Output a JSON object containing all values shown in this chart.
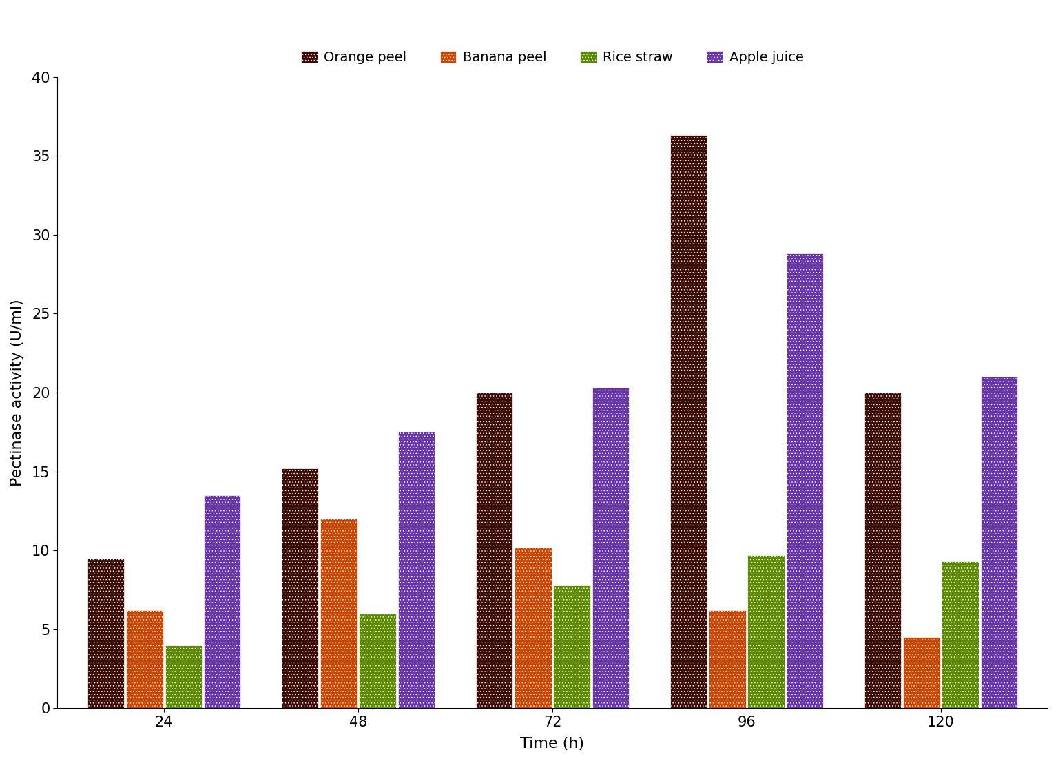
{
  "categories": [
    "24",
    "48",
    "72",
    "96",
    "120"
  ],
  "series": {
    "Orange peel": [
      9.5,
      15.2,
      20.0,
      36.3,
      20.0
    ],
    "Banana peel": [
      6.2,
      12.0,
      10.2,
      6.2,
      4.5
    ],
    "Rice straw": [
      4.0,
      6.0,
      7.8,
      9.7,
      9.3
    ],
    "Apple juice": [
      13.5,
      17.5,
      20.3,
      28.8,
      21.0
    ]
  },
  "colors": {
    "Orange peel": "#3B0A02",
    "Banana peel": "#CC4400",
    "Rice straw": "#5B8A00",
    "Apple juice": "#6633AA"
  },
  "xlabel": "Time (h)",
  "ylabel": "Pectinase activity (U/ml)",
  "ylim": [
    0,
    40
  ],
  "yticks": [
    0,
    5,
    10,
    15,
    20,
    25,
    30,
    35,
    40
  ],
  "bar_width": 0.19,
  "background_color": "#ffffff",
  "xlabel_fontsize": 16,
  "ylabel_fontsize": 16,
  "tick_fontsize": 15,
  "legend_fontsize": 14
}
